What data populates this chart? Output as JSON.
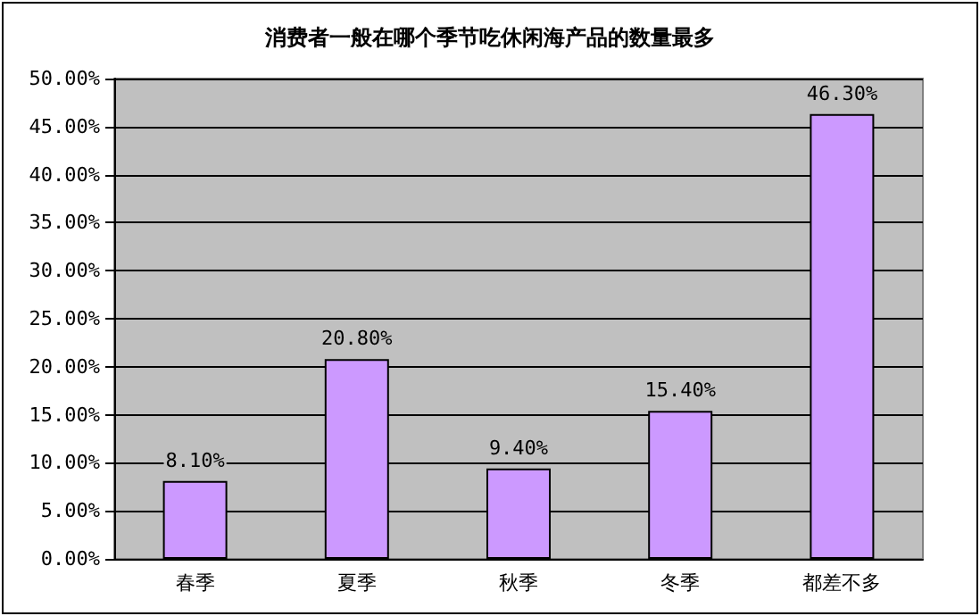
{
  "chart_data": {
    "type": "bar",
    "title": "消费者一般在哪个季节吃休闲海产品的数量最多",
    "categories": [
      "春季",
      "夏季",
      "秋季",
      "冬季",
      "都差不多"
    ],
    "values": [
      8.1,
      20.8,
      9.4,
      15.4,
      46.3
    ],
    "value_labels": [
      "8.10%",
      "20.80%",
      "9.40%",
      "15.40%",
      "46.30%"
    ],
    "color": "#cc99ff",
    "ylim": [
      0,
      50
    ],
    "yticks": [
      {
        "value": 0,
        "label": "0.00%"
      },
      {
        "value": 5,
        "label": "5.00%"
      },
      {
        "value": 10,
        "label": "10.00%"
      },
      {
        "value": 15,
        "label": "15.00%"
      },
      {
        "value": 20,
        "label": "20.00%"
      },
      {
        "value": 25,
        "label": "25.00%"
      },
      {
        "value": 30,
        "label": "30.00%"
      },
      {
        "value": 35,
        "label": "35.00%"
      },
      {
        "value": 40,
        "label": "40.00%"
      },
      {
        "value": 45,
        "label": "45.00%"
      },
      {
        "value": 50,
        "label": "50.00%"
      }
    ],
    "grid": true
  }
}
